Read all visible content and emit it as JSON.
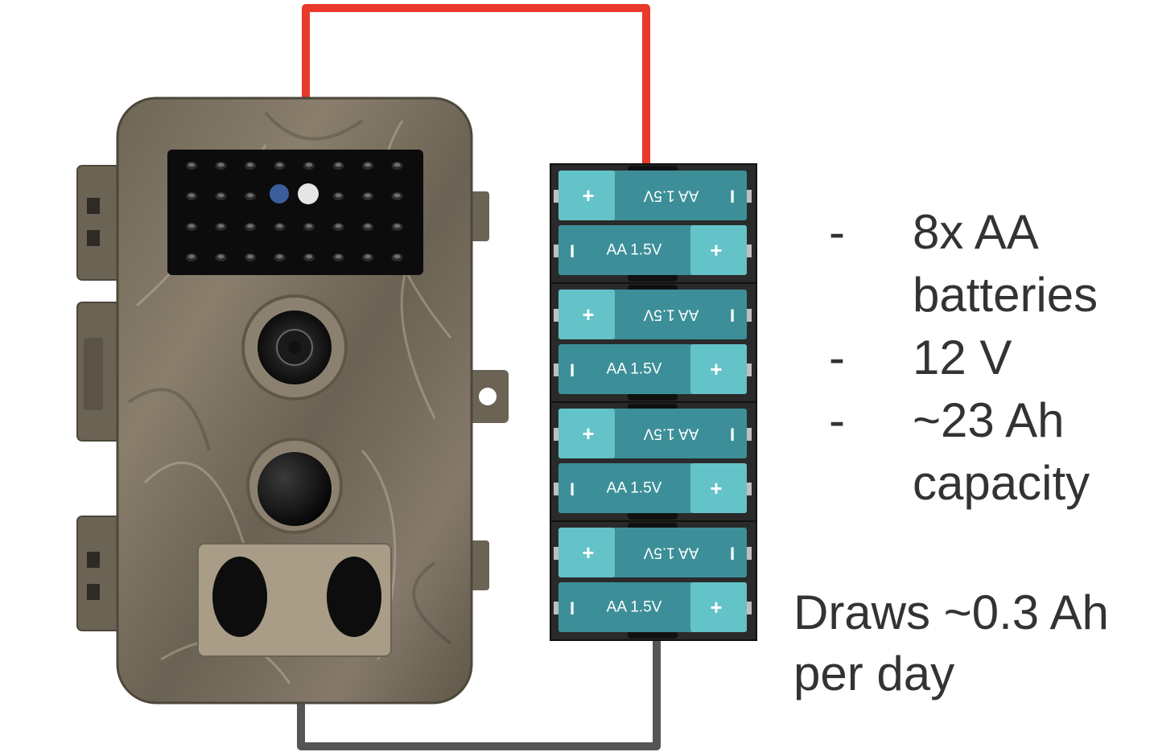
{
  "specs": [
    {
      "bullet": "-",
      "text": "8x AA batteries"
    },
    {
      "bullet": "-",
      "text": "12 V"
    },
    {
      "bullet": "-",
      "text": "~23 Ah capacity"
    }
  ],
  "draws": "Draws ~0.3 Ah per day",
  "battery_label": "AA 1.5V",
  "battery_plus": "+",
  "battery_minus": "I",
  "colors": {
    "positive_wire": "#e8392b",
    "negative_wire": "#555555",
    "battery_body": "#3c8f98",
    "battery_cap": "#63c3c8",
    "holder": "#2a2a2a",
    "camera_body": "#7d7363",
    "text": "#333333"
  }
}
